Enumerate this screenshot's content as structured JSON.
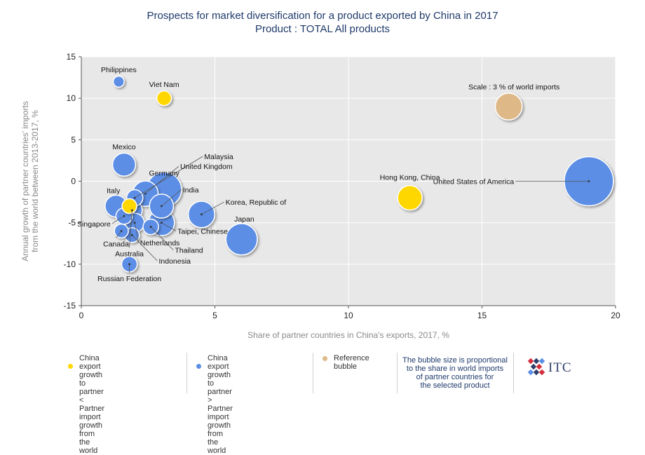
{
  "title": "Prospects for market diversification for a product exported by China in 2017",
  "subtitle": "Product : TOTAL All products",
  "chart_data": {
    "type": "scatter",
    "xlabel": "Share of partner countries in China's exports, 2017, %",
    "ylabel_lines": [
      "Annual growth of partner countries' imports",
      "from the world between 2013-2017, %"
    ],
    "xlim": [
      0,
      20
    ],
    "ylim": [
      -15,
      15
    ],
    "xticks": [
      0,
      5,
      10,
      15,
      20
    ],
    "yticks": [
      -15,
      -10,
      -5,
      0,
      5,
      10,
      15
    ],
    "grid": true,
    "colors": {
      "yellow": "#ffd700",
      "blue": "#5b8ee6",
      "reference": "#deb887",
      "plot_bg": "#e8e8e8"
    },
    "points": [
      {
        "name": "Philippines",
        "x": 1.4,
        "y": 12,
        "size": 0.5,
        "color": "blue",
        "label_x": 1.4,
        "label_y": 13.5
      },
      {
        "name": "Viet Nam",
        "x": 3.1,
        "y": 10,
        "size": 0.9,
        "color": "yellow",
        "label_x": 3.1,
        "label_y": 11.7
      },
      {
        "name": "Mexico",
        "x": 1.6,
        "y": 2,
        "size": 2.2,
        "color": "blue",
        "label_x": 1.6,
        "label_y": 4.2
      },
      {
        "name": "Malaysia",
        "x": 2.0,
        "y": -2,
        "size": 1.1,
        "color": "blue",
        "label_x": 4.6,
        "label_y": 3.0,
        "leader": true,
        "label_anchor": "start"
      },
      {
        "name": "United Kingdom",
        "x": 2.4,
        "y": -1.5,
        "size": 2.7,
        "color": "blue",
        "label_x": 3.7,
        "label_y": 1.8,
        "leader": true,
        "label_anchor": "start"
      },
      {
        "name": "Germany",
        "x": 3.1,
        "y": -1,
        "size": 5.0,
        "color": "blue",
        "label_x": 3.1,
        "label_y": 1.0
      },
      {
        "name": "India",
        "x": 3.0,
        "y": -3,
        "size": 2.4,
        "color": "blue",
        "label_x": 3.8,
        "label_y": -1.0,
        "leader": true,
        "label_anchor": "start"
      },
      {
        "name": "Italy",
        "x": 1.3,
        "y": -3,
        "size": 2.0,
        "color": "blue",
        "label_x": 1.2,
        "label_y": -1.1
      },
      {
        "name": "Korea, Republic of",
        "x": 4.5,
        "y": -4,
        "size": 2.9,
        "color": "blue",
        "label_x": 5.4,
        "label_y": -2.5,
        "leader": true,
        "label_anchor": "start"
      },
      {
        "name": "Taipei, Chinese",
        "x": 3.0,
        "y": -5,
        "size": 2.8,
        "color": "blue",
        "label_x": 3.6,
        "label_y": -6.0,
        "leader": true,
        "label_anchor": "start"
      },
      {
        "name": "Netherlands",
        "x": 2.0,
        "y": -5,
        "size": 1.5,
        "color": "blue",
        "label_x": 2.2,
        "label_y": -7.4,
        "leader": true,
        "label_anchor": "start"
      },
      {
        "name": "Singapore",
        "x": 1.6,
        "y": -4.2,
        "size": 1.1,
        "color": "blue",
        "label_x": 1.1,
        "label_y": -5.1,
        "leader": true,
        "label_anchor": "end"
      },
      {
        "name": "Canada",
        "x": 1.5,
        "y": -6,
        "size": 0.8,
        "color": "blue",
        "label_x": 1.3,
        "label_y": -7.5,
        "leader": true,
        "label_anchor": "middle"
      },
      {
        "name": "Thailand",
        "x": 2.6,
        "y": -5.5,
        "size": 1.0,
        "color": "blue",
        "label_x": 3.5,
        "label_y": -8.3,
        "leader": true,
        "label_anchor": "start"
      },
      {
        "name": "Australia",
        "x": 1.9,
        "y": -3.5,
        "size": 1.7,
        "color": "blue",
        "label_x": 1.8,
        "label_y": -8.7,
        "leader": true,
        "label_anchor": "middle"
      },
      {
        "name": "Indonesia",
        "x": 1.9,
        "y": -6.5,
        "size": 0.9,
        "color": "blue",
        "label_x": 2.9,
        "label_y": -9.6,
        "leader": true,
        "label_anchor": "start"
      },
      {
        "name": "Russian Federation",
        "x": 1.8,
        "y": -10,
        "size": 1.0,
        "color": "blue",
        "label_x": 1.8,
        "label_y": -11.7,
        "leader": true,
        "label_anchor": "middle"
      },
      {
        "name": "",
        "x": 1.8,
        "y": -3,
        "size": 0.9,
        "color": "yellow"
      },
      {
        "name": "Japan",
        "x": 6.0,
        "y": -7,
        "size": 4.1,
        "color": "blue",
        "label_x": 6.1,
        "label_y": -4.5
      },
      {
        "name": "Hong Kong, China",
        "x": 12.3,
        "y": -2,
        "size": 2.5,
        "color": "yellow",
        "label_x": 12.3,
        "label_y": 0.5
      },
      {
        "name": "United States of America",
        "x": 19.0,
        "y": 0,
        "size": 10.0,
        "color": "blue",
        "label_x": 16.2,
        "label_y": 0,
        "leader": true,
        "label_anchor": "end"
      },
      {
        "name": "Scale : 3 % of world imports",
        "x": 16.0,
        "y": 9,
        "size": 3.0,
        "color": "reference",
        "label_x": 16.2,
        "label_y": 11.4
      }
    ]
  },
  "legend": {
    "yellow_lines": [
      "China export growth to partner",
      "< Partner import growth from",
      "the world"
    ],
    "blue_lines": [
      "China export growth to partner",
      "> Partner import growth from",
      "the world"
    ],
    "reference_label": "Reference bubble",
    "note_lines": [
      "The bubble size is proportional",
      "to the share in world imports",
      "of partner countries for",
      "the selected product"
    ]
  },
  "logo": {
    "text": "ITC"
  }
}
